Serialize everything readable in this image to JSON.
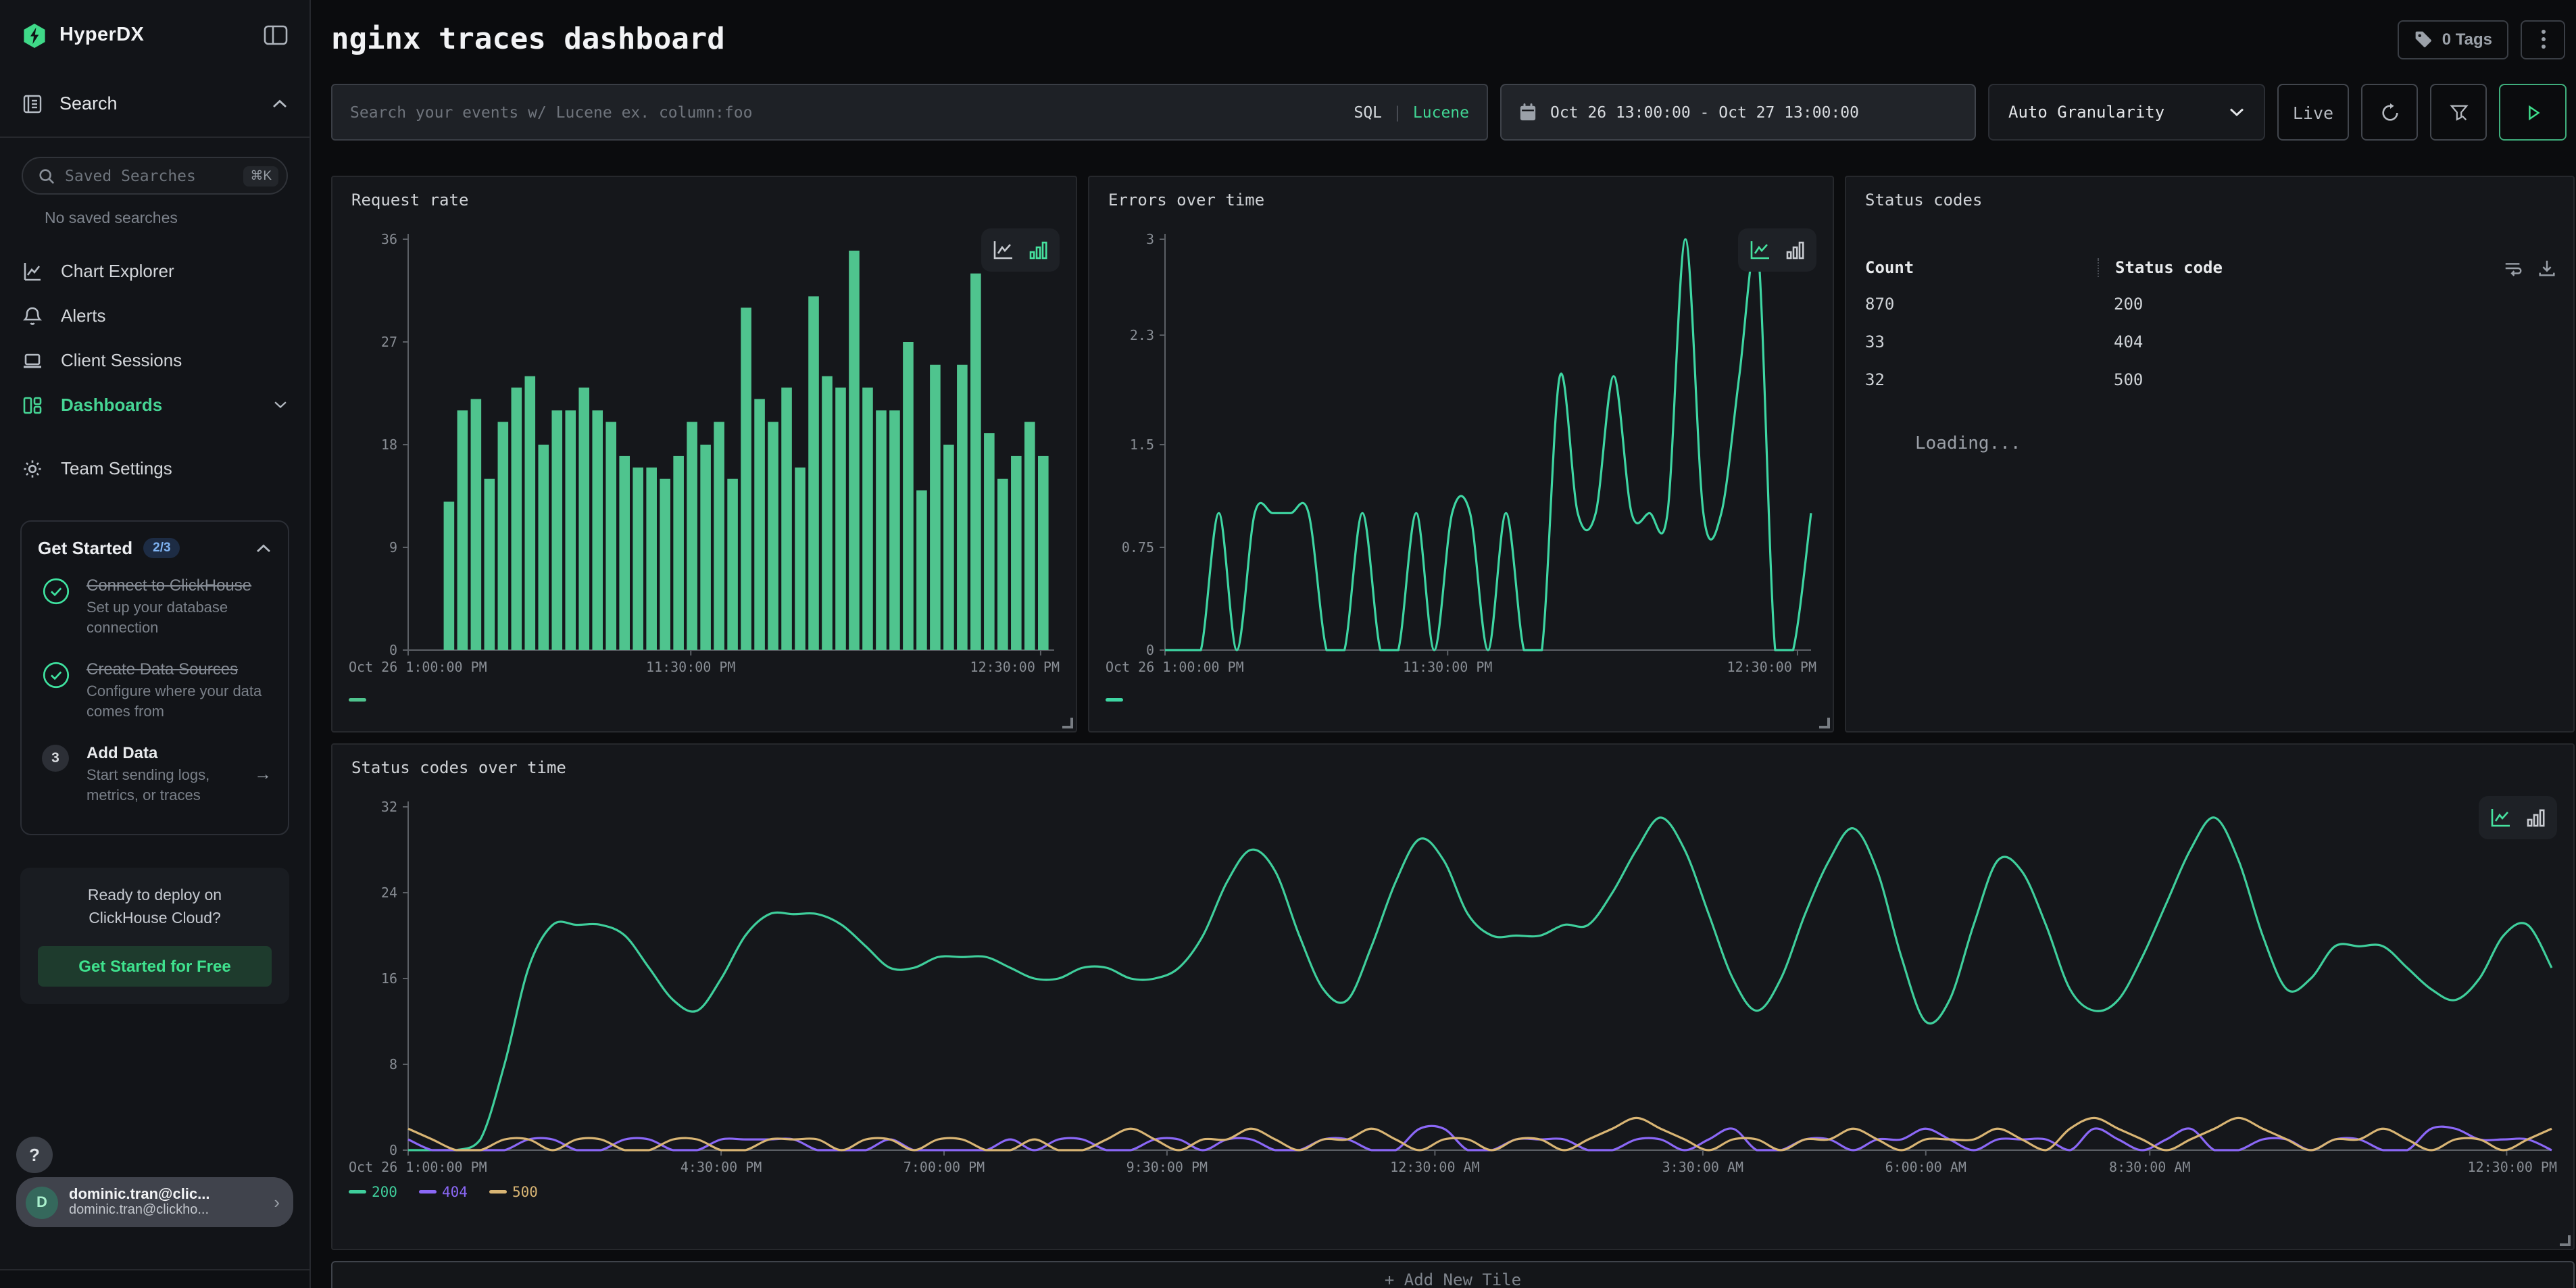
{
  "app": {
    "brand": "HyperDX"
  },
  "icons": {
    "cmd_k": "⌘K",
    "arrow_right": "→",
    "help": "?",
    "chevron_right": "›"
  },
  "sidebar": {
    "search_header": "Search",
    "saved_search_placeholder": "Saved Searches",
    "no_saved": "No saved searches",
    "nav": [
      {
        "label": "Chart Explorer"
      },
      {
        "label": "Alerts"
      },
      {
        "label": "Client Sessions"
      },
      {
        "label": "Dashboards"
      },
      {
        "label": "Team Settings"
      }
    ],
    "get_started": {
      "title": "Get Started",
      "badge": "2/3",
      "steps": [
        {
          "title": "Connect to ClickHouse",
          "subtitle": "Set up your database connection",
          "done": true
        },
        {
          "title": "Create Data Sources",
          "subtitle": "Configure where your data comes from",
          "done": true
        },
        {
          "title": "Add Data",
          "subtitle": "Start sending logs, metrics, or traces",
          "done": false,
          "number": "3"
        }
      ]
    },
    "deploy": {
      "line1": "Ready to deploy on",
      "line2": "ClickHouse Cloud?",
      "cta": "Get Started for Free"
    },
    "user": {
      "initial": "D",
      "name": "dominic.tran@clic...",
      "email": "dominic.tran@clickho..."
    }
  },
  "header": {
    "title": "nginx traces dashboard",
    "tags_label": "0 Tags"
  },
  "toolbar": {
    "search_placeholder": "Search your events w/ Lucene ex. column:foo",
    "sql": "SQL",
    "divider": "|",
    "lucene": "Lucene",
    "date_range": "Oct 26 13:00:00 - Oct 27 13:00:00",
    "granularity": "Auto Granularity",
    "live": "Live"
  },
  "panels": {
    "request_rate": {
      "title": "Request rate"
    },
    "errors": {
      "title": "Errors over time"
    },
    "status_codes": {
      "title": "Status codes",
      "col_count": "Count",
      "col_code": "Status code",
      "rows": [
        {
          "count": "870",
          "code": "200"
        },
        {
          "count": "33",
          "code": "404"
        },
        {
          "count": "32",
          "code": "500"
        }
      ],
      "loading": "Loading..."
    },
    "status_over_time": {
      "title": "Status codes over time"
    }
  },
  "add_tile_label": "+ Add New Tile",
  "colors": {
    "green": "#46d695",
    "bar_green": "#4fc48e",
    "purple": "#8b68f7",
    "tan": "#d9b574"
  },
  "chart_data": [
    {
      "id": "request_rate",
      "type": "bar",
      "title": "Request rate",
      "ylim": [
        0,
        36
      ],
      "yticks": [
        36,
        27,
        18,
        9,
        0
      ],
      "xticks": [
        {
          "f": 0.0,
          "label": "Oct 26 1:00:00 PM"
        },
        {
          "f": 0.4375,
          "label": "11:30:00 PM"
        },
        {
          "f": 0.979,
          "label": "12:30:00 PM"
        }
      ],
      "color": "#4fc48e",
      "values": [
        13,
        21,
        22,
        15,
        20,
        23,
        24,
        18,
        21,
        21,
        23,
        21,
        20,
        17,
        16,
        16,
        15,
        17,
        20,
        18,
        20,
        15,
        30,
        22,
        20,
        23,
        16,
        31,
        24,
        23,
        35,
        23,
        21,
        21,
        27,
        14,
        25,
        18,
        25,
        33,
        19,
        15,
        17,
        20,
        17
      ],
      "legend": [
        {
          "label": "",
          "color": "#4fc48e"
        }
      ],
      "active_view": "bar",
      "grid": false,
      "legend_position": "bottom-left"
    },
    {
      "id": "errors",
      "type": "line",
      "title": "Errors over time",
      "ylim": [
        0,
        3
      ],
      "yticks": [
        3,
        2.3,
        1.5,
        0.75,
        0
      ],
      "xticks": [
        {
          "f": 0.0,
          "label": "Oct 26 1:00:00 PM"
        },
        {
          "f": 0.4375,
          "label": "11:30:00 PM"
        },
        {
          "f": 0.979,
          "label": "12:30:00 PM"
        }
      ],
      "series": [
        {
          "name": "errors",
          "color": "#3ed6a3",
          "values": [
            0,
            0,
            0,
            1,
            0,
            1,
            1,
            1,
            1,
            0,
            0,
            1,
            0,
            0,
            1,
            0,
            1,
            1,
            0,
            1,
            0,
            0,
            2,
            1,
            1,
            2,
            1,
            1,
            1,
            3,
            1,
            1,
            2,
            3,
            0,
            0,
            1
          ]
        }
      ],
      "legend": [
        {
          "label": "",
          "color": "#3ed6a3"
        }
      ],
      "active_view": "line",
      "grid": false,
      "legend_position": "bottom-left"
    },
    {
      "id": "status_over_time",
      "type": "line",
      "title": "Status codes over time",
      "ylim": [
        0,
        32
      ],
      "yticks": [
        32,
        24,
        16,
        8,
        0
      ],
      "xticks": [
        {
          "f": 0.0,
          "label": "Oct 26 1:00:00 PM"
        },
        {
          "f": 0.146,
          "label": "4:30:00 PM"
        },
        {
          "f": 0.25,
          "label": "7:00:00 PM"
        },
        {
          "f": 0.354,
          "label": "9:30:00 PM"
        },
        {
          "f": 0.479,
          "label": "12:30:00 AM"
        },
        {
          "f": 0.604,
          "label": "3:30:00 AM"
        },
        {
          "f": 0.708,
          "label": "6:00:00 AM"
        },
        {
          "f": 0.8125,
          "label": "8:30:00 AM"
        },
        {
          "f": 0.979,
          "label": "12:30:00 PM"
        }
      ],
      "series": [
        {
          "name": "200",
          "color": "#3fcf9c",
          "values": [
            0,
            0,
            0,
            1,
            8,
            17,
            21,
            21,
            21,
            20,
            17,
            14,
            13,
            16,
            20,
            22,
            22,
            22,
            21,
            19,
            17,
            17,
            18,
            18,
            18,
            17,
            16,
            16,
            17,
            17,
            16,
            16,
            17,
            20,
            25,
            28,
            26,
            20,
            15,
            14,
            19,
            25,
            29,
            27,
            22,
            20,
            20,
            20,
            21,
            21,
            24,
            28,
            31,
            28,
            22,
            16,
            13,
            16,
            22,
            27,
            30,
            26,
            18,
            12,
            14,
            21,
            27,
            26,
            21,
            15,
            13,
            14,
            18,
            23,
            28,
            31,
            27,
            20,
            15,
            16,
            19,
            19,
            19,
            17,
            15,
            14,
            16,
            20,
            21,
            17
          ]
        },
        {
          "name": "404",
          "color": "#8b68f7",
          "values": [
            1,
            0,
            0,
            0,
            0,
            1,
            1,
            0,
            0,
            1,
            1,
            0,
            0,
            1,
            1,
            1,
            1,
            0,
            0,
            0,
            1,
            0,
            0,
            0,
            0,
            1,
            0,
            1,
            1,
            0,
            0,
            1,
            1,
            0,
            1,
            1,
            0,
            0,
            1,
            1,
            0,
            0,
            2,
            2,
            0,
            0,
            1,
            1,
            1,
            0,
            0,
            1,
            1,
            0,
            1,
            2,
            0,
            0,
            1,
            1,
            0,
            1,
            1,
            2,
            1,
            0,
            1,
            1,
            1,
            0,
            2,
            1,
            0,
            1,
            2,
            0,
            0,
            1,
            1,
            0,
            1,
            1,
            0,
            0,
            2,
            2,
            1,
            1,
            1,
            0
          ]
        },
        {
          "name": "500",
          "color": "#d9b574",
          "values": [
            2,
            1,
            0,
            0,
            1,
            1,
            0,
            1,
            1,
            0,
            0,
            1,
            1,
            0,
            0,
            1,
            1,
            1,
            0,
            1,
            1,
            0,
            1,
            1,
            0,
            0,
            1,
            0,
            0,
            1,
            2,
            1,
            0,
            1,
            1,
            2,
            1,
            0,
            1,
            1,
            2,
            1,
            0,
            1,
            1,
            0,
            1,
            1,
            0,
            1,
            2,
            3,
            2,
            1,
            0,
            1,
            1,
            0,
            1,
            1,
            2,
            1,
            0,
            1,
            1,
            1,
            2,
            1,
            0,
            2,
            3,
            2,
            1,
            0,
            1,
            2,
            3,
            2,
            1,
            0,
            1,
            1,
            2,
            1,
            0,
            1,
            1,
            0,
            1,
            2
          ]
        }
      ],
      "legend": [
        {
          "label": "200",
          "color": "#3fcf9c"
        },
        {
          "label": "404",
          "color": "#8b68f7"
        },
        {
          "label": "500",
          "color": "#d9b574"
        }
      ],
      "active_view": "line",
      "grid": false,
      "legend_position": "bottom-left"
    }
  ]
}
